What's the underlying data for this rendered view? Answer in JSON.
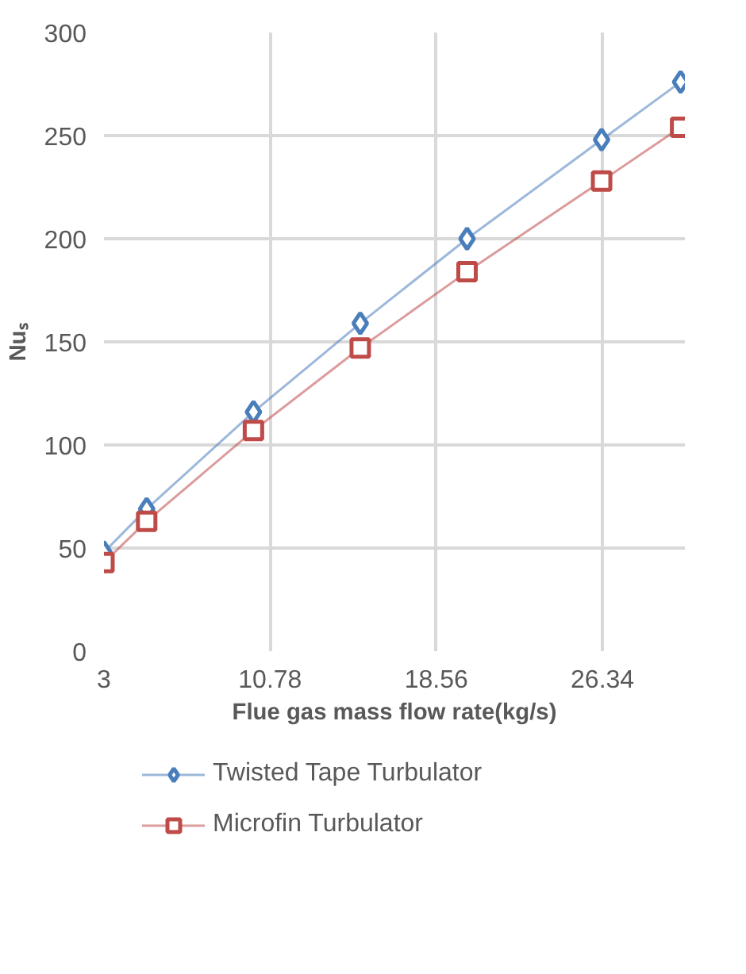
{
  "chart_data": {
    "type": "line",
    "xlabel": "Flue gas mass flow rate(kg/s)",
    "ylabel": "Nuₛ",
    "xlim": [
      3,
      30.2
    ],
    "xticks": [
      3,
      10.78,
      18.56,
      26.34
    ],
    "ylim": [
      0,
      300
    ],
    "yticks": [
      0,
      50,
      100,
      150,
      200,
      250,
      300
    ],
    "grid": true,
    "legend": "bottom",
    "series": [
      {
        "name": "Twisted Tape Turbulator",
        "color": "#4a7ebb",
        "marker": "diamond",
        "x": [
          3,
          5,
          10,
          15,
          20,
          26.3,
          30
        ],
        "values": [
          48,
          69,
          116,
          159,
          200,
          248,
          276
        ]
      },
      {
        "name": "Microfin Turbulator",
        "color": "#be4b48",
        "marker": "square",
        "x": [
          3,
          5,
          10,
          15,
          20,
          26.3,
          30
        ],
        "values": [
          43,
          63,
          107,
          147,
          184,
          228,
          254
        ]
      }
    ]
  }
}
